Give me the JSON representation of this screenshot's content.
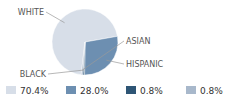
{
  "chart_data": {
    "type": "pie",
    "categories": [
      "WHITE",
      "HISPANIC",
      "BLACK",
      "ASIAN"
    ],
    "values": [
      70.4,
      28.0,
      0.8,
      0.8
    ],
    "value_labels": [
      "70.4%",
      "28.0%",
      "0.8%",
      "0.8%"
    ],
    "colors": [
      "#d7dee8",
      "#6d8fb1",
      "#2e5575",
      "#a8b8cb"
    ],
    "legend": "bottom"
  }
}
